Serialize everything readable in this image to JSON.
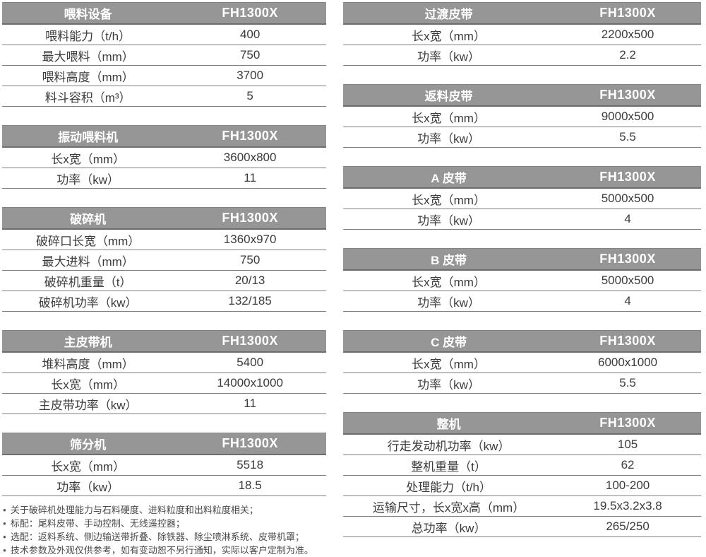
{
  "model_label": "FH1300X",
  "colors": {
    "header_bg": "#969696",
    "header_text": "#ffffff",
    "row_line": "#7b7b7b",
    "body_text": "#3b3b3b",
    "note_text": "#4a4a4a"
  },
  "tables_left": [
    {
      "title": "喂料设备",
      "rows": [
        {
          "label": "喂料能力（t/h）",
          "value": "400"
        },
        {
          "label": "最大喂料（mm）",
          "value": "750"
        },
        {
          "label": "喂料高度（mm）",
          "value": "3700"
        },
        {
          "label": "料斗容积（m³）",
          "value": "5"
        }
      ]
    },
    {
      "title": "振动喂料机",
      "rows": [
        {
          "label": "长x宽（mm）",
          "value": "3600x800"
        },
        {
          "label": "功率（kw）",
          "value": "11"
        }
      ]
    },
    {
      "title": "破碎机",
      "rows": [
        {
          "label": "破碎口长宽（mm）",
          "value": "1360x970"
        },
        {
          "label": "最大进料（mm）",
          "value": "750"
        },
        {
          "label": "破碎机重量（t）",
          "value": "20/13"
        },
        {
          "label": "破碎机功率（kw）",
          "value": "132/185"
        }
      ]
    },
    {
      "title": "主皮带机",
      "rows": [
        {
          "label": "堆料高度（mm）",
          "value": "5400"
        },
        {
          "label": "长x宽（mm）",
          "value": "14000x1000"
        },
        {
          "label": "主皮带功率（kw）",
          "value": "11"
        }
      ]
    },
    {
      "title": "筛分机",
      "rows": [
        {
          "label": "长x宽（mm）",
          "value": "5518"
        },
        {
          "label": "功率（kw）",
          "value": "18.5"
        }
      ]
    }
  ],
  "tables_right": [
    {
      "title": "过渡皮带",
      "rows": [
        {
          "label": "长x宽（mm）",
          "value": "2200x500"
        },
        {
          "label": "功率（kw）",
          "value": "2.2"
        }
      ]
    },
    {
      "title": "返料皮带",
      "rows": [
        {
          "label": "长x宽（mm）",
          "value": "9000x500"
        },
        {
          "label": "功率（kw）",
          "value": "5.5"
        }
      ]
    },
    {
      "title": "A 皮带",
      "rows": [
        {
          "label": "长x宽（mm）",
          "value": "5000x500"
        },
        {
          "label": "功率（kw）",
          "value": "4"
        }
      ]
    },
    {
      "title": "B 皮带",
      "rows": [
        {
          "label": "长x宽（mm）",
          "value": "5000x500"
        },
        {
          "label": "功率（kw）",
          "value": "4"
        }
      ]
    },
    {
      "title": "C 皮带",
      "rows": [
        {
          "label": "长x宽（mm）",
          "value": "6000x1000"
        },
        {
          "label": "功率（kw）",
          "value": "5.5"
        }
      ]
    },
    {
      "title": "整机",
      "rows": [
        {
          "label": "行走发动机功率（kw）",
          "value": "105"
        },
        {
          "label": "整机重量（t）",
          "value": "62"
        },
        {
          "label": "处理能力（t/h）",
          "value": "100-200"
        },
        {
          "label": "运输尺寸，长x宽x高（mm）",
          "value": "19.5x3.2x3.8"
        },
        {
          "label": "总功率（kw）",
          "value": "265/250"
        }
      ]
    }
  ],
  "notes": {
    "bullet": "●",
    "items": [
      "关于破碎机处理能力与石料硬度、进料粒度和出料粒度相关；",
      "标配：尾料皮带、手动控制、无线遥控器；",
      "选配：返料系统、侧边输送带折叠、除铁器、除尘喷淋系统、皮带机罩；",
      "技术参数及外观仅供参考，如有变动恕不另行通知，实际以客户定制为准。"
    ]
  }
}
